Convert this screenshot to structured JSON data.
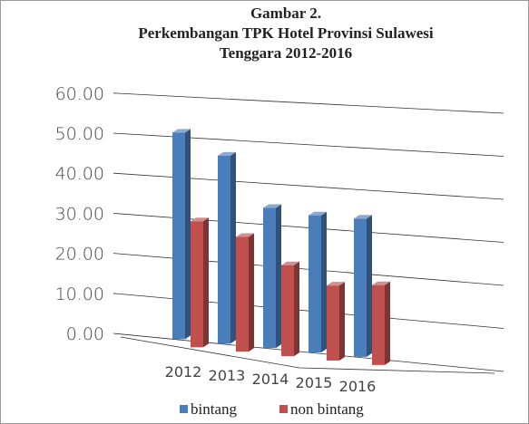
{
  "chart_data": {
    "type": "bar3d",
    "title": [
      "Gambar 2.",
      "Perkembangan TPK Hotel Provinsi Sulawesi",
      "Tenggara 2012-2016"
    ],
    "categories": [
      "2012",
      "2013",
      "2014",
      "2015",
      "2016"
    ],
    "series": [
      {
        "name": "bintang",
        "color": "#4a7ebb",
        "values": [
          51,
          46,
          34,
          33,
          33
        ]
      },
      {
        "name": "non bintang",
        "color": "#c0504d",
        "values": [
          31,
          28,
          22,
          18,
          19
        ]
      }
    ],
    "ylim": [
      0,
      60
    ],
    "yticks": [
      {
        "value": 0,
        "label": "0.00"
      },
      {
        "value": 10,
        "label": "10.00"
      },
      {
        "value": 20,
        "label": "20.00"
      },
      {
        "value": 30,
        "label": "30.00"
      },
      {
        "value": 40,
        "label": "40.00"
      },
      {
        "value": 50,
        "label": "50.00"
      },
      {
        "value": 60,
        "label": "60.00"
      }
    ],
    "grid": true,
    "legend": "bottom"
  }
}
